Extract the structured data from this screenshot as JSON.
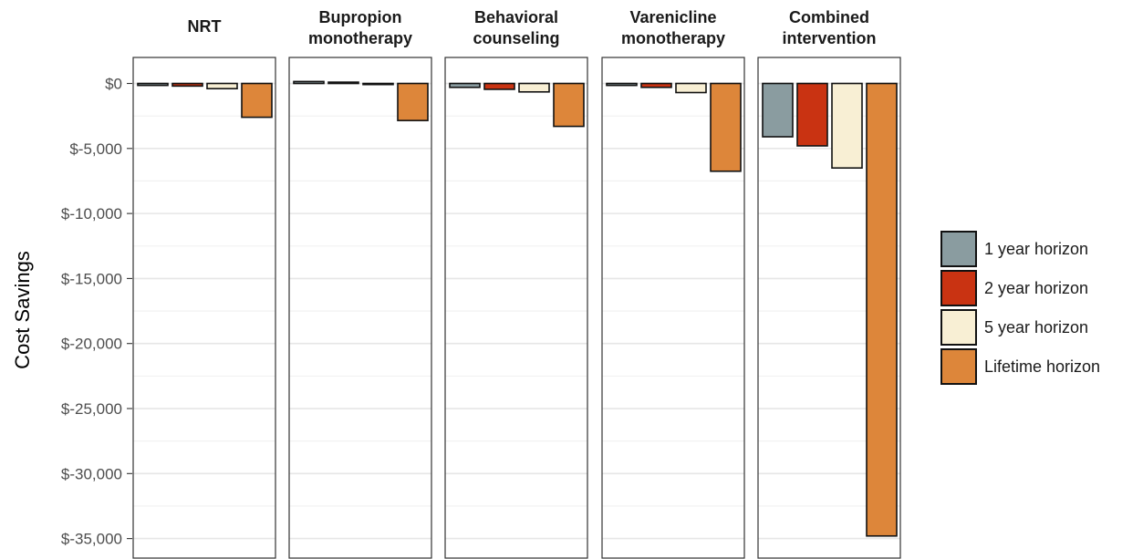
{
  "chart_data": {
    "type": "bar",
    "facets": [
      "NRT",
      "Bupropion monotherapy",
      "Behavioral counseling",
      "Varenicline monotherapy",
      "Combined intervention"
    ],
    "facet_label_lines": [
      [
        "NRT"
      ],
      [
        "Bupropion",
        "monotherapy"
      ],
      [
        "Behavioral",
        "counseling"
      ],
      [
        "Varenicline",
        "monotherapy"
      ],
      [
        "Combined",
        "intervention"
      ]
    ],
    "series": [
      {
        "name": "1 year horizon",
        "color": "#8a9ca0",
        "values": [
          -150,
          150,
          -300,
          -150,
          -4100
        ]
      },
      {
        "name": "2 year horizon",
        "color": "#c93312",
        "values": [
          -200,
          100,
          -450,
          -300,
          -4800
        ]
      },
      {
        "name": "5 year horizon",
        "color": "#f8efd4",
        "values": [
          -400,
          -60,
          -650,
          -700,
          -6500
        ]
      },
      {
        "name": "Lifetime horizon",
        "color": "#dd863a",
        "values": [
          -2600,
          -2850,
          -3300,
          -6750,
          -34800
        ]
      }
    ],
    "ylabel": "Cost Savings",
    "ylim": [
      -36500,
      2000
    ],
    "yticks": [
      0,
      -5000,
      -10000,
      -15000,
      -20000,
      -25000,
      -30000,
      -35000
    ],
    "ytick_labels": [
      "$0",
      "$-5,000",
      "$-10,000",
      "$-15,000",
      "$-20,000",
      "$-25,000",
      "$-30,000",
      "$-35,000"
    ],
    "grid": true,
    "legend_position": "right"
  }
}
